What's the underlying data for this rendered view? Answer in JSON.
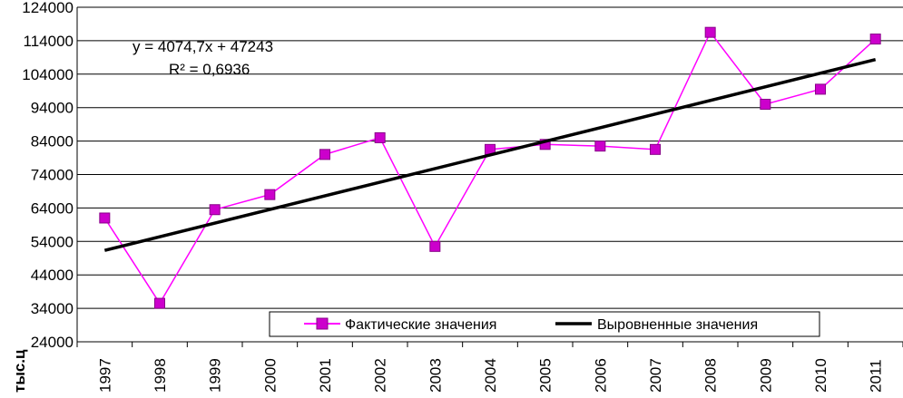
{
  "chart_data": {
    "type": "line",
    "ylabel": "тыс.ц",
    "ylim": [
      24000,
      124000
    ],
    "y_ticks": [
      "24000",
      "34000",
      "44000",
      "54000",
      "64000",
      "74000",
      "84000",
      "94000",
      "104000",
      "114000",
      "124000"
    ],
    "categories": [
      "1997",
      "1998",
      "1999",
      "2000",
      "2001",
      "2002",
      "2003",
      "2004",
      "2005",
      "2006",
      "2007",
      "2008",
      "2009",
      "2010",
      "2011"
    ],
    "grid": true,
    "legend_position": "bottom",
    "series": [
      {
        "name": "Фактические значения",
        "color": "#FF00FF",
        "marker_color": "#CC00CC",
        "marker": "square",
        "values": [
          61000,
          35500,
          63500,
          68000,
          80000,
          85000,
          52500,
          81500,
          83000,
          82500,
          81500,
          116500,
          95000,
          99500,
          114500
        ]
      },
      {
        "name": "Выровненные значения",
        "color": "#000000",
        "type": "linear-trend",
        "values": [
          51317.7,
          55392.4,
          59467.1,
          63541.8,
          67616.5,
          71691.2,
          75765.9,
          79840.6,
          83915.3,
          87990.0,
          92064.7,
          96139.4,
          100214.1,
          104288.8,
          108363.5
        ]
      }
    ],
    "annotations": {
      "equation": "y = 4074,7x + 47243",
      "r2": "R² = 0,6936"
    }
  }
}
